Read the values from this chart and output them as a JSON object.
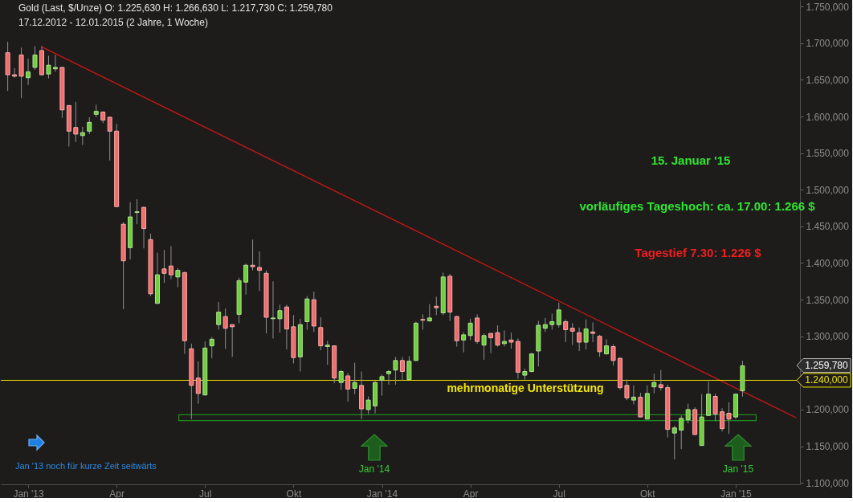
{
  "chart_data": {
    "type": "candlestick",
    "title": "Gold (Last, $/Unze) O: 1.225,630 H: 1.266,630 L: 1.217,730 C: 1.259,780",
    "subtitle": "17.12.2012 - 12.01.2015 (2 Jahre, 1 Woche)",
    "x": [
      "2012-12-17",
      "2012-12-24",
      "2012-12-31",
      "2013-01-07",
      "2013-01-14",
      "2013-01-21",
      "2013-01-28",
      "2013-02-04",
      "2013-02-11",
      "2013-02-18",
      "2013-02-25",
      "2013-03-04",
      "2013-03-11",
      "2013-03-18",
      "2013-03-25",
      "2013-04-01",
      "2013-04-08",
      "2013-04-15",
      "2013-04-22",
      "2013-04-29",
      "2013-05-06",
      "2013-05-13",
      "2013-05-20",
      "2013-05-27",
      "2013-06-03",
      "2013-06-10",
      "2013-06-17",
      "2013-06-24",
      "2013-07-01",
      "2013-07-08",
      "2013-07-15",
      "2013-07-22",
      "2013-07-29",
      "2013-08-05",
      "2013-08-12",
      "2013-08-19",
      "2013-08-26",
      "2013-09-02",
      "2013-09-09",
      "2013-09-16",
      "2013-09-23",
      "2013-09-30",
      "2013-10-07",
      "2013-10-14",
      "2013-10-21",
      "2013-10-28",
      "2013-11-04",
      "2013-11-11",
      "2013-11-18",
      "2013-11-25",
      "2013-12-02",
      "2013-12-09",
      "2013-12-16",
      "2013-12-23",
      "2013-12-30",
      "2014-01-06",
      "2014-01-13",
      "2014-01-20",
      "2014-01-27",
      "2014-02-03",
      "2014-02-10",
      "2014-02-17",
      "2014-02-24",
      "2014-03-03",
      "2014-03-10",
      "2014-03-17",
      "2014-03-24",
      "2014-03-31",
      "2014-04-07",
      "2014-04-14",
      "2014-04-21",
      "2014-04-28",
      "2014-05-05",
      "2014-05-12",
      "2014-05-19",
      "2014-05-26",
      "2014-06-02",
      "2014-06-09",
      "2014-06-16",
      "2014-06-23",
      "2014-06-30",
      "2014-07-07",
      "2014-07-14",
      "2014-07-21",
      "2014-07-28",
      "2014-08-04",
      "2014-08-11",
      "2014-08-18",
      "2014-08-25",
      "2014-09-01",
      "2014-09-08",
      "2014-09-15",
      "2014-09-22",
      "2014-09-29",
      "2014-10-06",
      "2014-10-13",
      "2014-10-20",
      "2014-10-27",
      "2014-11-03",
      "2014-11-10",
      "2014-11-17",
      "2014-11-24",
      "2014-12-01",
      "2014-12-08",
      "2014-12-15",
      "2014-12-22",
      "2014-12-29",
      "2015-01-05",
      "2015-01-12"
    ],
    "ohlc": [
      [
        1687,
        1702,
        1635,
        1657
      ],
      [
        1657,
        1666,
        1653,
        1655
      ],
      [
        1684,
        1694,
        1625,
        1655
      ],
      [
        1653,
        1679,
        1643,
        1661
      ],
      [
        1667,
        1696,
        1664,
        1684
      ],
      [
        1690,
        1696,
        1656,
        1657
      ],
      [
        1658,
        1683,
        1652,
        1670
      ],
      [
        1665,
        1684,
        1661,
        1667
      ],
      [
        1667,
        1667,
        1598,
        1609
      ],
      [
        1615,
        1615,
        1559,
        1580
      ],
      [
        1585,
        1620,
        1565,
        1576
      ],
      [
        1574,
        1586,
        1561,
        1578
      ],
      [
        1580,
        1599,
        1576,
        1592
      ],
      [
        1603,
        1616,
        1599,
        1607
      ],
      [
        1606,
        1607,
        1591,
        1595
      ],
      [
        1599,
        1599,
        1540,
        1580
      ],
      [
        1580,
        1590,
        1477,
        1477
      ],
      [
        1453,
        1456,
        1337,
        1403
      ],
      [
        1421,
        1483,
        1405,
        1463
      ],
      [
        1469,
        1487,
        1453,
        1470
      ],
      [
        1476,
        1477,
        1420,
        1447
      ],
      [
        1432,
        1440,
        1355,
        1358
      ],
      [
        1345,
        1414,
        1344,
        1384
      ],
      [
        1392,
        1418,
        1373,
        1386
      ],
      [
        1396,
        1423,
        1378,
        1384
      ],
      [
        1381,
        1393,
        1367,
        1390
      ],
      [
        1387,
        1388,
        1276,
        1294
      ],
      [
        1283,
        1290,
        1187,
        1233
      ],
      [
        1243,
        1266,
        1208,
        1222
      ],
      [
        1220,
        1293,
        1219,
        1284
      ],
      [
        1287,
        1299,
        1270,
        1296
      ],
      [
        1316,
        1347,
        1309,
        1333
      ],
      [
        1327,
        1338,
        1283,
        1311
      ],
      [
        1316,
        1316,
        1272,
        1313
      ],
      [
        1330,
        1380,
        1318,
        1376
      ],
      [
        1374,
        1399,
        1357,
        1397
      ],
      [
        1397,
        1432,
        1390,
        1395
      ],
      [
        1394,
        1416,
        1362,
        1390
      ],
      [
        1386,
        1390,
        1304,
        1326
      ],
      [
        1324,
        1375,
        1297,
        1325
      ],
      [
        1324,
        1343,
        1305,
        1335
      ],
      [
        1340,
        1343,
        1282,
        1310
      ],
      [
        1313,
        1329,
        1263,
        1271
      ],
      [
        1272,
        1324,
        1252,
        1316
      ],
      [
        1320,
        1355,
        1309,
        1351
      ],
      [
        1350,
        1361,
        1306,
        1314
      ],
      [
        1312,
        1326,
        1281,
        1287
      ],
      [
        1286,
        1294,
        1261,
        1288
      ],
      [
        1287,
        1287,
        1236,
        1243
      ],
      [
        1237,
        1254,
        1227,
        1252
      ],
      [
        1246,
        1250,
        1211,
        1228
      ],
      [
        1229,
        1264,
        1221,
        1237
      ],
      [
        1233,
        1252,
        1187,
        1201
      ],
      [
        1200,
        1218,
        1194,
        1213
      ],
      [
        1205,
        1239,
        1195,
        1237
      ],
      [
        1240,
        1248,
        1219,
        1245
      ],
      [
        1249,
        1254,
        1234,
        1252
      ],
      [
        1254,
        1272,
        1234,
        1267
      ],
      [
        1267,
        1272,
        1240,
        1252
      ],
      [
        1241,
        1273,
        1241,
        1266
      ],
      [
        1267,
        1320,
        1267,
        1318
      ],
      [
        1323,
        1330,
        1309,
        1322
      ],
      [
        1321,
        1344,
        1320,
        1325
      ],
      [
        1341,
        1354,
        1329,
        1339
      ],
      [
        1332,
        1387,
        1329,
        1381
      ],
      [
        1382,
        1385,
        1321,
        1333
      ],
      [
        1327,
        1328,
        1286,
        1294
      ],
      [
        1295,
        1306,
        1278,
        1302
      ],
      [
        1301,
        1324,
        1295,
        1318
      ],
      [
        1325,
        1330,
        1290,
        1293
      ],
      [
        1288,
        1304,
        1268,
        1301
      ],
      [
        1304,
        1304,
        1277,
        1298
      ],
      [
        1305,
        1315,
        1286,
        1288
      ],
      [
        1290,
        1308,
        1286,
        1293
      ],
      [
        1295,
        1305,
        1283,
        1292
      ],
      [
        1293,
        1297,
        1242,
        1251
      ],
      [
        1247,
        1256,
        1241,
        1252
      ],
      [
        1252,
        1277,
        1251,
        1276
      ],
      [
        1280,
        1321,
        1259,
        1315
      ],
      [
        1311,
        1325,
        1306,
        1316
      ],
      [
        1316,
        1331,
        1309,
        1320
      ],
      [
        1316,
        1346,
        1312,
        1336
      ],
      [
        1320,
        1323,
        1292,
        1309
      ],
      [
        1311,
        1318,
        1288,
        1307
      ],
      [
        1305,
        1312,
        1280,
        1292
      ],
      [
        1292,
        1323,
        1282,
        1310
      ],
      [
        1306,
        1319,
        1292,
        1304
      ],
      [
        1300,
        1302,
        1272,
        1279
      ],
      [
        1276,
        1296,
        1275,
        1287
      ],
      [
        1286,
        1289,
        1260,
        1267
      ],
      [
        1270,
        1271,
        1227,
        1230
      ],
      [
        1233,
        1241,
        1213,
        1216
      ],
      [
        1213,
        1233,
        1207,
        1217
      ],
      [
        1217,
        1223,
        1190,
        1190
      ],
      [
        1187,
        1233,
        1187,
        1222
      ],
      [
        1231,
        1249,
        1222,
        1237
      ],
      [
        1234,
        1254,
        1226,
        1230
      ],
      [
        1230,
        1234,
        1162,
        1173
      ],
      [
        1168,
        1178,
        1132,
        1175
      ],
      [
        1172,
        1192,
        1146,
        1188
      ],
      [
        1186,
        1208,
        1181,
        1200
      ],
      [
        1200,
        1203,
        1165,
        1166
      ],
      [
        1151,
        1221,
        1151,
        1190
      ],
      [
        1192,
        1238,
        1192,
        1221
      ],
      [
        1218,
        1222,
        1184,
        1194
      ],
      [
        1197,
        1202,
        1170,
        1174
      ],
      [
        1195,
        1210,
        1167,
        1187
      ],
      [
        1190,
        1222,
        1187,
        1221
      ],
      [
        1225.63,
        1266.63,
        1217.73,
        1259.78
      ]
    ],
    "colors": [
      "#f26c6c",
      "#f26c6c",
      "#f26c6c",
      "#6fce3b",
      "#6fce3b",
      "#f26c6c",
      "#6fce3b",
      "#6fce3b",
      "#f26c6c",
      "#f26c6c",
      "#f26c6c",
      "#6fce3b",
      "#6fce3b",
      "#6fce3b",
      "#f26c6c",
      "#f26c6c",
      "#f26c6c",
      "#f26c6c",
      "#6fce3b",
      "#6fce3b",
      "#f26c6c",
      "#f26c6c",
      "#6fce3b",
      "#f26c6c",
      "#f26c6c",
      "#6fce3b",
      "#f26c6c",
      "#f26c6c",
      "#f26c6c",
      "#6fce3b",
      "#6fce3b",
      "#6fce3b",
      "#f26c6c",
      "#f26c6c",
      "#6fce3b",
      "#6fce3b",
      "#f26c6c",
      "#f26c6c",
      "#f26c6c",
      "#6fce3b",
      "#6fce3b",
      "#f26c6c",
      "#f26c6c",
      "#6fce3b",
      "#6fce3b",
      "#f26c6c",
      "#f26c6c",
      "#6fce3b",
      "#f26c6c",
      "#6fce3b",
      "#f26c6c",
      "#6fce3b",
      "#f26c6c",
      "#6fce3b",
      "#6fce3b",
      "#6fce3b",
      "#6fce3b",
      "#6fce3b",
      "#f26c6c",
      "#6fce3b",
      "#6fce3b",
      "#f26c6c",
      "#6fce3b",
      "#f26c6c",
      "#6fce3b",
      "#f26c6c",
      "#f26c6c",
      "#6fce3b",
      "#6fce3b",
      "#f26c6c",
      "#6fce3b",
      "#f26c6c",
      "#f26c6c",
      "#6fce3b",
      "#f26c6c",
      "#f26c6c",
      "#6fce3b",
      "#6fce3b",
      "#6fce3b",
      "#6fce3b",
      "#6fce3b",
      "#6fce3b",
      "#f26c6c",
      "#f26c6c",
      "#f26c6c",
      "#6fce3b",
      "#f26c6c",
      "#f26c6c",
      "#6fce3b",
      "#f26c6c",
      "#f26c6c",
      "#f26c6c",
      "#6fce3b",
      "#f26c6c",
      "#6fce3b",
      "#6fce3b",
      "#f26c6c",
      "#f26c6c",
      "#6fce3b",
      "#6fce3b",
      "#6fce3b",
      "#f26c6c",
      "#6fce3b",
      "#6fce3b",
      "#f26c6c",
      "#f26c6c",
      "#f26c6c",
      "#6fce3b",
      "#6fce3b"
    ],
    "series": [
      {
        "type": "line",
        "color": "#d01515",
        "x": [
          "2013-01-21",
          "2015-03-08"
        ],
        "values": [
          1695,
          1189
        ]
      },
      {
        "type": "line",
        "color": "#1f8a1f",
        "x": [
          "2013-06-11",
          "2013-06-11",
          "2015-01-26",
          "2015-01-26"
        ],
        "values": [
          1185,
          1193,
          1193,
          1185
        ]
      },
      {
        "type": "line",
        "color": "#1f8a1f",
        "x": [
          "2013-06-11",
          "2015-01-26"
        ],
        "values": [
          1185,
          1185
        ]
      }
    ],
    "ref_lines": [
      {
        "axis": "y",
        "value": 1240,
        "label": "1.240,000",
        "color": "#f2e200"
      }
    ],
    "annotations": [
      "15. Januar '15",
      "vorläufiges Tageshoch: ca. 17.00: 1.266 $",
      "Tagestief 7.30: 1.226 $",
      "mehrmonatige Unterstützung",
      "Jan '13 noch für kurze Zeit seitwärts",
      "Jan '14",
      "Jan '15",
      "1.259,780"
    ],
    "xlim": [
      "2012-12-14",
      "2015-03-08"
    ],
    "xticks": [
      {
        "value": "2013-01-07",
        "label": "Jan '13"
      },
      {
        "value": "2013-04-08",
        "label": "Apr"
      },
      {
        "value": "2013-07-08",
        "label": "Jul"
      },
      {
        "value": "2013-10-07",
        "label": "Okt"
      },
      {
        "value": "2014-01-06",
        "label": "Jan '14"
      },
      {
        "value": "2014-04-07",
        "label": "Apr"
      },
      {
        "value": "2014-07-07",
        "label": "Jul"
      },
      {
        "value": "2014-10-06",
        "label": "Okt"
      },
      {
        "value": "2015-01-05",
        "label": "Jan '15"
      }
    ],
    "ylim": [
      1098,
      1759
    ],
    "yticks": [
      {
        "value": 1100,
        "label": "1.100,000"
      },
      {
        "value": 1150,
        "label": "1.150,000"
      },
      {
        "value": 1200,
        "label": "1.200,000"
      },
      {
        "value": 1300,
        "label": "1.300,000"
      },
      {
        "value": 1350,
        "label": "1.350,000"
      },
      {
        "value": 1400,
        "label": "1.400,000"
      },
      {
        "value": 1450,
        "label": "1.450,000"
      },
      {
        "value": 1500,
        "label": "1.500,000"
      },
      {
        "value": 1550,
        "label": "1.550,000"
      },
      {
        "value": 1600,
        "label": "1.600,000"
      },
      {
        "value": 1650,
        "label": "1.650,000"
      },
      {
        "value": 1700,
        "label": "1.700,000"
      },
      {
        "value": 1750,
        "label": "1.750,000"
      }
    ]
  }
}
